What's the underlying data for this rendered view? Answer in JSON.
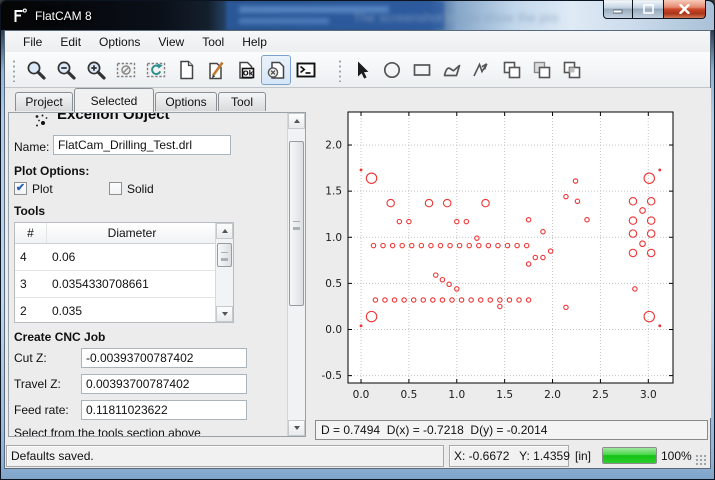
{
  "window": {
    "title": "FlatCAM 8",
    "background_ghost_text": "The screenshot below show the pro",
    "caption_buttons": [
      "minimize",
      "maximize",
      "close"
    ]
  },
  "menu": {
    "items": [
      "File",
      "Edit",
      "Options",
      "View",
      "Tool",
      "Help"
    ]
  },
  "toolbar": {
    "groups": [
      [
        "zoom-fit",
        "zoom-out",
        "zoom-in",
        "clear-plot",
        "replot",
        "new-file",
        "edit-file",
        "save-ok",
        "cancel-file",
        "shell"
      ],
      [
        "pointer",
        "circle-tool",
        "rectangle-tool",
        "polygon-tool",
        "polyline-tool",
        "union-tool",
        "intersect-tool",
        "subtract-tool"
      ]
    ],
    "pressed": "cancel-file"
  },
  "tabs": {
    "items": [
      "Project",
      "Selected",
      "Options",
      "Tool"
    ],
    "active": "Selected"
  },
  "panel": {
    "title": "Excellon Object",
    "name_label": "Name:",
    "name_value": "FlatCam_Drilling_Test.drl",
    "plot_options_label": "Plot Options:",
    "plot_checkbox": {
      "label": "Plot",
      "checked": true
    },
    "solid_checkbox": {
      "label": "Solid",
      "checked": false
    },
    "tools_label": "Tools",
    "table": {
      "headers": [
        "#",
        "Diameter"
      ],
      "rows": [
        [
          "4",
          "0.06"
        ],
        [
          "3",
          "0.0354330708661"
        ],
        [
          "2",
          "0.035"
        ]
      ]
    },
    "cnc_label": "Create CNC Job",
    "fields": [
      {
        "label": "Cut Z:",
        "value": "-0.00393700787402"
      },
      {
        "label": "Travel Z:",
        "value": "0.00393700787402"
      },
      {
        "label": "Feed rate:",
        "value": "0.11811023622"
      }
    ],
    "footer_note": "Select from the tools section above"
  },
  "plot_info": "D = 0.7494  D(x) = -0.7218  D(y) = -0.2014",
  "statusbar": {
    "message": "Defaults saved.",
    "coords": "X: -0.6672   Y: 1.4359",
    "units": "[in]",
    "progress_value": 100,
    "progress_label": "100%"
  },
  "colors": {
    "marker": "#ee3434",
    "grid": "#c3c3c3",
    "progress_green": "#12c212",
    "close_red": "#cd4a2c"
  },
  "chart_data": {
    "type": "scatter",
    "title": "",
    "xlabel": "",
    "ylabel": "",
    "xlim": [
      -0.136,
      3.258
    ],
    "ylim": [
      -0.58,
      2.358
    ],
    "xticks": [
      0.0,
      0.5,
      1.0,
      1.5,
      2.0,
      2.5,
      3.0
    ],
    "yticks": [
      -0.5,
      0.0,
      0.5,
      1.0,
      1.5,
      2.0
    ],
    "grid": true,
    "legend": false,
    "marker_style": "open-circle",
    "series": [
      {
        "name": "drill-extra-large",
        "marker_radius": 5.2,
        "points": [
          [
            0.11,
            1.64
          ],
          [
            3.01,
            1.64
          ],
          [
            0.11,
            0.14
          ],
          [
            3.01,
            0.14
          ]
        ]
      },
      {
        "name": "drill-pilot-dots",
        "marker_radius": 0.9,
        "points": [
          [
            0.0,
            1.73
          ],
          [
            3.12,
            1.73
          ],
          [
            0.0,
            0.04
          ],
          [
            3.12,
            0.04
          ]
        ]
      },
      {
        "name": "drill-large",
        "marker_radius": 3.7,
        "points": [
          [
            0.31,
            1.37
          ],
          [
            0.71,
            1.37
          ],
          [
            0.9,
            1.37
          ],
          [
            1.3,
            1.37
          ],
          [
            2.84,
            1.39
          ],
          [
            3.03,
            1.39
          ],
          [
            2.84,
            1.18
          ],
          [
            3.03,
            1.18
          ],
          [
            2.84,
            1.04
          ],
          [
            3.03,
            1.04
          ],
          [
            2.84,
            0.83
          ],
          [
            3.03,
            0.83
          ]
        ]
      },
      {
        "name": "drill-medium",
        "marker_radius": 2.8,
        "points": [
          [
            2.94,
            1.29
          ],
          [
            2.94,
            0.93
          ]
        ]
      },
      {
        "name": "drill-small",
        "marker_radius": 2.2,
        "points": [
          [
            0.4,
            1.17
          ],
          [
            0.5,
            1.17
          ],
          [
            1.0,
            1.17
          ],
          [
            1.1,
            1.17
          ],
          [
            1.75,
            1.19
          ],
          [
            2.36,
            1.19
          ],
          [
            1.9,
            1.06
          ],
          [
            1.21,
            0.99
          ],
          [
            2.24,
            1.61
          ],
          [
            2.14,
            1.44
          ],
          [
            2.26,
            1.39
          ],
          [
            0.13,
            0.91
          ],
          [
            0.23,
            0.91
          ],
          [
            0.33,
            0.91
          ],
          [
            0.43,
            0.91
          ],
          [
            0.53,
            0.91
          ],
          [
            0.63,
            0.91
          ],
          [
            0.73,
            0.91
          ],
          [
            0.83,
            0.91
          ],
          [
            0.93,
            0.91
          ],
          [
            1.03,
            0.91
          ],
          [
            1.13,
            0.91
          ],
          [
            1.23,
            0.91
          ],
          [
            1.33,
            0.91
          ],
          [
            1.43,
            0.91
          ],
          [
            1.53,
            0.91
          ],
          [
            1.63,
            0.91
          ],
          [
            1.73,
            0.91
          ],
          [
            1.75,
            0.71
          ],
          [
            1.82,
            0.78
          ],
          [
            1.9,
            0.78
          ],
          [
            1.98,
            0.85
          ],
          [
            0.78,
            0.59
          ],
          [
            0.85,
            0.54
          ],
          [
            0.92,
            0.49
          ],
          [
            1.0,
            0.44
          ],
          [
            0.15,
            0.32
          ],
          [
            0.25,
            0.32
          ],
          [
            0.35,
            0.32
          ],
          [
            0.45,
            0.32
          ],
          [
            0.55,
            0.32
          ],
          [
            0.65,
            0.32
          ],
          [
            0.75,
            0.32
          ],
          [
            0.85,
            0.32
          ],
          [
            0.95,
            0.32
          ],
          [
            1.05,
            0.32
          ],
          [
            1.15,
            0.32
          ],
          [
            1.25,
            0.32
          ],
          [
            1.35,
            0.32
          ],
          [
            1.45,
            0.32
          ],
          [
            1.55,
            0.32
          ],
          [
            1.65,
            0.32
          ],
          [
            1.75,
            0.32
          ],
          [
            1.45,
            0.25
          ],
          [
            2.14,
            0.24
          ],
          [
            2.86,
            0.44
          ]
        ]
      }
    ]
  }
}
